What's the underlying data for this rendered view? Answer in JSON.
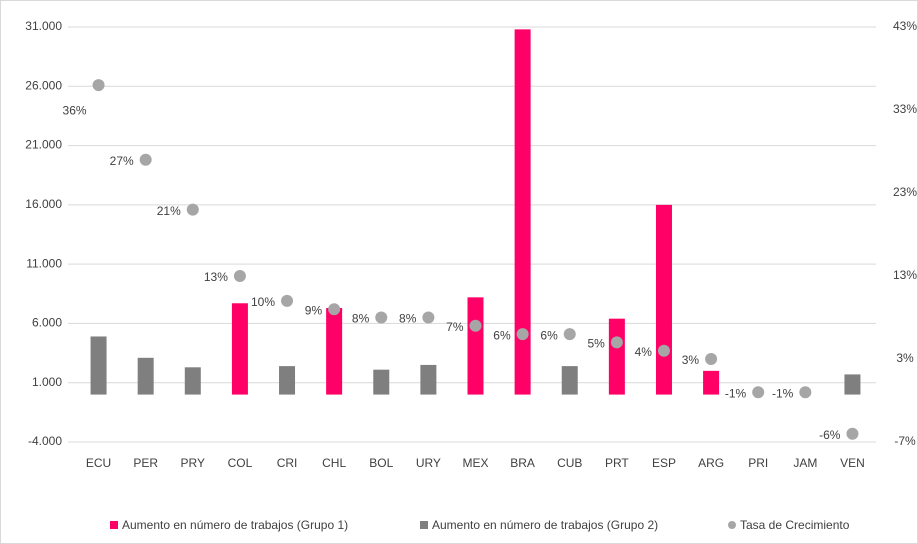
{
  "chart_data": {
    "type": "bar",
    "categories": [
      "ECU",
      "PER",
      "PRY",
      "COL",
      "CRI",
      "CHL",
      "BOL",
      "URY",
      "MEX",
      "BRA",
      "CUB",
      "PRT",
      "ESP",
      "ARG",
      "PRI",
      "JAM",
      "VEN"
    ],
    "series": [
      {
        "name": "Aumento en número de trabajos (Grupo 1)",
        "color": "#ff0066",
        "type": "bar",
        "values": [
          null,
          null,
          null,
          7700,
          null,
          7300,
          null,
          null,
          8200,
          30800,
          null,
          6400,
          16000,
          2000,
          null,
          null,
          null
        ]
      },
      {
        "name": "Aumento en número de trabajos (Grupo 2)",
        "color": "#7f7f7f",
        "type": "bar",
        "values": [
          4900,
          3100,
          2300,
          null,
          2400,
          null,
          2100,
          2500,
          null,
          null,
          2400,
          null,
          null,
          null,
          null,
          null,
          1700
        ]
      },
      {
        "name": "Tasa de Crecimiento",
        "color": "#a6a6a6",
        "type": "scatter",
        "axis": "y2",
        "values": [
          36,
          27,
          21,
          13,
          10,
          9,
          8,
          8,
          7,
          6,
          6,
          5,
          4,
          3,
          -1,
          -1,
          -6
        ],
        "value_labels": [
          "36%",
          "27%",
          "21%",
          "13%",
          "10%",
          "9%",
          "8%",
          "8%",
          "7%",
          "6%",
          "6%",
          "5%",
          "4%",
          "3%",
          "-1%",
          "-1%",
          "-6%"
        ]
      }
    ],
    "ylim": [
      -4000,
      31000
    ],
    "yticks": [
      {
        "value": -4000,
        "label": "-4.000"
      },
      {
        "value": 1000,
        "label": "1.000"
      },
      {
        "value": 6000,
        "label": "6.000"
      },
      {
        "value": 11000,
        "label": "11.000"
      },
      {
        "value": 16000,
        "label": "16.000"
      },
      {
        "value": 21000,
        "label": "21.000"
      },
      {
        "value": 26000,
        "label": "26.000"
      },
      {
        "value": 31000,
        "label": "31.000"
      }
    ],
    "y2lim": [
      -7,
      43
    ],
    "y2ticks": [
      {
        "value": -7,
        "label": "-7%"
      },
      {
        "value": 3,
        "label": "3%"
      },
      {
        "value": 13,
        "label": "13%"
      },
      {
        "value": 23,
        "label": "23%"
      },
      {
        "value": 33,
        "label": "33%"
      },
      {
        "value": 43,
        "label": "43%"
      }
    ],
    "grid": true,
    "legend": "bottom"
  }
}
